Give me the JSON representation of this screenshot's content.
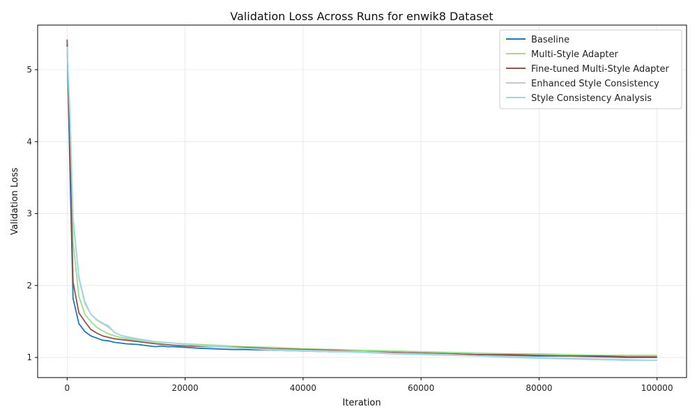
{
  "chart_data": {
    "type": "line",
    "title": "Validation Loss Across Runs for enwik8 Dataset",
    "xlabel": "Iteration",
    "ylabel": "Validation Loss",
    "xlim": [
      -5000,
      105000
    ],
    "ylim": [
      0.72,
      5.62
    ],
    "xticks": [
      0,
      20000,
      40000,
      60000,
      80000,
      100000
    ],
    "yticks": [
      1,
      2,
      3,
      4,
      5
    ],
    "grid": true,
    "legend_position": "top-right",
    "series": [
      {
        "name": "Baseline",
        "color": "#1f77b4",
        "x": [
          0,
          500,
          1000,
          2000,
          3000,
          4000,
          5000,
          6000,
          7000,
          8000,
          9000,
          10000,
          12000,
          14000,
          15000,
          16000,
          17000,
          18000,
          20000,
          22000,
          25000,
          28000,
          30000,
          35000,
          40000,
          45000,
          50000,
          55000,
          60000,
          65000,
          70000,
          75000,
          80000,
          85000,
          90000,
          95000,
          100000
        ],
        "y": [
          5.35,
          3.5,
          1.82,
          1.47,
          1.36,
          1.3,
          1.27,
          1.24,
          1.23,
          1.21,
          1.2,
          1.19,
          1.18,
          1.16,
          1.15,
          1.16,
          1.15,
          1.15,
          1.14,
          1.13,
          1.12,
          1.11,
          1.11,
          1.1,
          1.09,
          1.08,
          1.08,
          1.07,
          1.06,
          1.05,
          1.04,
          1.03,
          1.02,
          1.02,
          1.01,
          1.0,
          1.0
        ]
      },
      {
        "name": "Multi-Style Adapter",
        "color": "#98df8a",
        "x": [
          0,
          500,
          1000,
          2000,
          3000,
          4000,
          5000,
          6000,
          7000,
          8000,
          9000,
          10000,
          12000,
          15000,
          18000,
          20000,
          25000,
          30000,
          35000,
          40000,
          45000,
          50000,
          55000,
          60000,
          65000,
          70000,
          75000,
          80000,
          85000,
          90000,
          95000,
          100000
        ],
        "y": [
          5.3,
          4.2,
          2.6,
          1.85,
          1.6,
          1.5,
          1.42,
          1.37,
          1.33,
          1.3,
          1.28,
          1.26,
          1.24,
          1.21,
          1.2,
          1.19,
          1.17,
          1.15,
          1.14,
          1.12,
          1.11,
          1.1,
          1.09,
          1.08,
          1.07,
          1.06,
          1.05,
          1.05,
          1.04,
          1.03,
          1.03,
          1.03
        ]
      },
      {
        "name": "Fine-tuned Multi-Style Adapter",
        "color": "#8c564b",
        "x": [
          0,
          500,
          1000,
          2000,
          3000,
          4000,
          5000,
          6000,
          7000,
          8000,
          9000,
          10000,
          12000,
          15000,
          18000,
          20000,
          25000,
          30000,
          35000,
          40000,
          45000,
          50000,
          55000,
          60000,
          65000,
          70000,
          75000,
          80000,
          85000,
          90000,
          95000,
          100000
        ],
        "y": [
          5.42,
          3.8,
          2.05,
          1.62,
          1.5,
          1.39,
          1.34,
          1.3,
          1.28,
          1.26,
          1.25,
          1.24,
          1.22,
          1.19,
          1.17,
          1.16,
          1.15,
          1.14,
          1.12,
          1.11,
          1.1,
          1.08,
          1.07,
          1.06,
          1.05,
          1.04,
          1.04,
          1.03,
          1.02,
          1.02,
          1.01,
          1.01
        ]
      },
      {
        "name": "Enhanced Style Consistency",
        "color": "#c7c7c7",
        "x": [
          0,
          500,
          1000,
          2000,
          3000,
          4000,
          5000,
          6000,
          7000,
          8000,
          9000,
          10000,
          12000,
          15000,
          18000,
          20000,
          25000,
          30000,
          35000,
          40000,
          45000,
          50000,
          55000,
          60000,
          65000,
          70000,
          75000,
          80000,
          85000,
          90000,
          95000,
          100000
        ],
        "y": [
          5.3,
          4.3,
          2.9,
          2.1,
          1.75,
          1.6,
          1.52,
          1.47,
          1.42,
          1.35,
          1.31,
          1.29,
          1.26,
          1.22,
          1.2,
          1.18,
          1.16,
          1.13,
          1.11,
          1.1,
          1.09,
          1.08,
          1.06,
          1.05,
          1.04,
          1.02,
          1.01,
          1.0,
          0.99,
          0.98,
          0.97,
          0.96
        ]
      },
      {
        "name": "Style Consistency Analysis",
        "color": "#9edae5",
        "x": [
          0,
          500,
          1000,
          2000,
          3000,
          4000,
          5000,
          6000,
          7000,
          8000,
          9000,
          10000,
          12000,
          15000,
          18000,
          20000,
          25000,
          30000,
          35000,
          40000,
          45000,
          50000,
          55000,
          60000,
          65000,
          70000,
          75000,
          80000,
          85000,
          90000,
          95000,
          100000
        ],
        "y": [
          5.32,
          4.35,
          2.95,
          2.12,
          1.78,
          1.6,
          1.53,
          1.48,
          1.44,
          1.35,
          1.31,
          1.28,
          1.25,
          1.22,
          1.2,
          1.18,
          1.15,
          1.13,
          1.1,
          1.09,
          1.08,
          1.07,
          1.05,
          1.04,
          1.03,
          1.02,
          1.0,
          0.99,
          0.98,
          0.97,
          0.96,
          0.96
        ]
      }
    ]
  }
}
